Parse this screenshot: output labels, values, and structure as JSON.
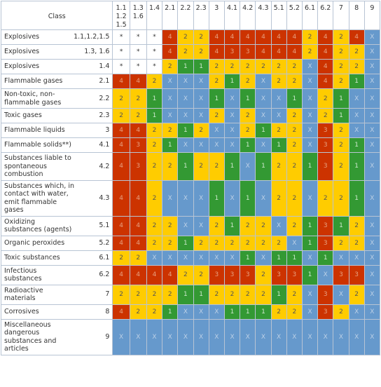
{
  "table": {
    "class_header": "Class",
    "columns": [
      [
        "1.1",
        "1.2",
        "1.5"
      ],
      [
        "1.3",
        "1.6"
      ],
      [
        "1.4"
      ],
      [
        "2.1"
      ],
      [
        "2.2"
      ],
      [
        "2.3"
      ],
      [
        "3"
      ],
      [
        "4.1"
      ],
      [
        "4.2"
      ],
      [
        "4.3"
      ],
      [
        "5.1"
      ],
      [
        "5.2"
      ],
      [
        "6.1"
      ],
      [
        "6.2"
      ],
      [
        "7"
      ],
      [
        "8"
      ],
      [
        "9"
      ]
    ],
    "rows": [
      {
        "label": "Explosives",
        "class": "1.1,1.2,1.5",
        "cells": [
          "*",
          "*",
          "*",
          "4",
          "2",
          "2",
          "4",
          "4",
          "4",
          "4",
          "4",
          "4",
          "2",
          "4",
          "2",
          "4",
          "X"
        ]
      },
      {
        "label": "Explosives",
        "class": "1.3, 1.6",
        "cells": [
          "*",
          "*",
          "*",
          "4",
          "2",
          "2",
          "4",
          "3",
          "3",
          "4",
          "4",
          "4",
          "2",
          "4",
          "2",
          "2",
          "X"
        ]
      },
      {
        "label": "Explosives",
        "class": "1.4",
        "cells": [
          "*",
          "*",
          "*",
          "2",
          "1",
          "1",
          "2",
          "2",
          "2",
          "2",
          "2",
          "2",
          "X",
          "4",
          "2",
          "2",
          "X"
        ]
      },
      {
        "label": "Flammable gases",
        "class": "2.1",
        "cells": [
          "4",
          "4",
          "2",
          "X",
          "X",
          "X",
          "2",
          "1",
          "2",
          "X",
          "2",
          "2",
          "X",
          "4",
          "2",
          "1",
          "X"
        ]
      },
      {
        "label": "Non-toxic, non-flammable gases",
        "class": "2.2",
        "cells": [
          "2",
          "2",
          "1",
          "X",
          "X",
          "X",
          "1",
          "X",
          "1",
          "X",
          "X",
          "1",
          "X",
          "2",
          "1",
          "X",
          "X"
        ]
      },
      {
        "label": "Toxic gases",
        "class": "2.3",
        "cells": [
          "2",
          "2",
          "1",
          "X",
          "X",
          "X",
          "2",
          "X",
          "2",
          "X",
          "X",
          "2",
          "X",
          "2",
          "1",
          "X",
          "X"
        ]
      },
      {
        "label": "Flammable liquids",
        "class": "3",
        "cells": [
          "4",
          "4",
          "2",
          "2",
          "1",
          "2",
          "X",
          "X",
          "2",
          "1",
          "2",
          "2",
          "X",
          "3",
          "2",
          "X",
          "X"
        ]
      },
      {
        "label": "Flammable solids**)",
        "class": "4.1",
        "cells": [
          "4",
          "3",
          "2",
          "1",
          "X",
          "X",
          "X",
          "X",
          "1",
          "X",
          "1",
          "2",
          "X",
          "3",
          "2",
          "1",
          "X"
        ]
      },
      {
        "label": "Substances liable to spontaneous combustion",
        "class": "4.2",
        "cells": [
          "4",
          "3",
          "2",
          "2",
          "1",
          "2",
          "2",
          "1",
          "X",
          "1",
          "2",
          "2",
          "1",
          "3",
          "2",
          "1",
          "X"
        ]
      },
      {
        "label": "Substances which, in contact with water, emit flammable gases",
        "class": "4.3",
        "cells": [
          "4",
          "4",
          "2",
          "X",
          "X",
          "X",
          "1",
          "X",
          "1",
          "X",
          "2",
          "2",
          "X",
          "2",
          "2",
          "1",
          "X"
        ]
      },
      {
        "label": "Oxidizing substances (agents)",
        "class": "5.1",
        "cells": [
          "4",
          "4",
          "2",
          "2",
          "X",
          "X",
          "2",
          "1",
          "2",
          "2",
          "X",
          "2",
          "1",
          "3",
          "1",
          "2",
          "X"
        ]
      },
      {
        "label": "Organic peroxides",
        "class": "5.2",
        "cells": [
          "4",
          "4",
          "2",
          "2",
          "1",
          "2",
          "2",
          "2",
          "2",
          "2",
          "2",
          "X",
          "1",
          "3",
          "2",
          "2",
          "X"
        ]
      },
      {
        "label": "Toxic substances",
        "class": "6.1",
        "cells": [
          "2",
          "2",
          "X",
          "X",
          "X",
          "X",
          "X",
          "X",
          "1",
          "X",
          "1",
          "1",
          "X",
          "1",
          "X",
          "X",
          "X"
        ]
      },
      {
        "label": "Infectious substances",
        "class": "6.2",
        "cells": [
          "4",
          "4",
          "4",
          "4",
          "2",
          "2",
          "3",
          "3",
          "3",
          "2",
          "3",
          "3",
          "1",
          "X",
          "3",
          "3",
          "X"
        ]
      },
      {
        "label": "Radioactive materials",
        "class": "7",
        "cells": [
          "2",
          "2",
          "2",
          "2",
          "1",
          "1",
          "2",
          "2",
          "2",
          "2",
          "1",
          "2",
          "X",
          "3",
          "X",
          "2",
          "X"
        ]
      },
      {
        "label": "Corrosives",
        "class": "8",
        "cells": [
          "4",
          "2",
          "2",
          "1",
          "X",
          "X",
          "X",
          "1",
          "1",
          "1",
          "2",
          "2",
          "X",
          "3",
          "2",
          "X",
          "X"
        ]
      },
      {
        "label": "Miscellaneous dangerous substances and articles",
        "class": "9",
        "cells": [
          "X",
          "X",
          "X",
          "X",
          "X",
          "X",
          "X",
          "X",
          "X",
          "X",
          "X",
          "X",
          "X",
          "X",
          "X",
          "X",
          "X"
        ]
      }
    ]
  }
}
